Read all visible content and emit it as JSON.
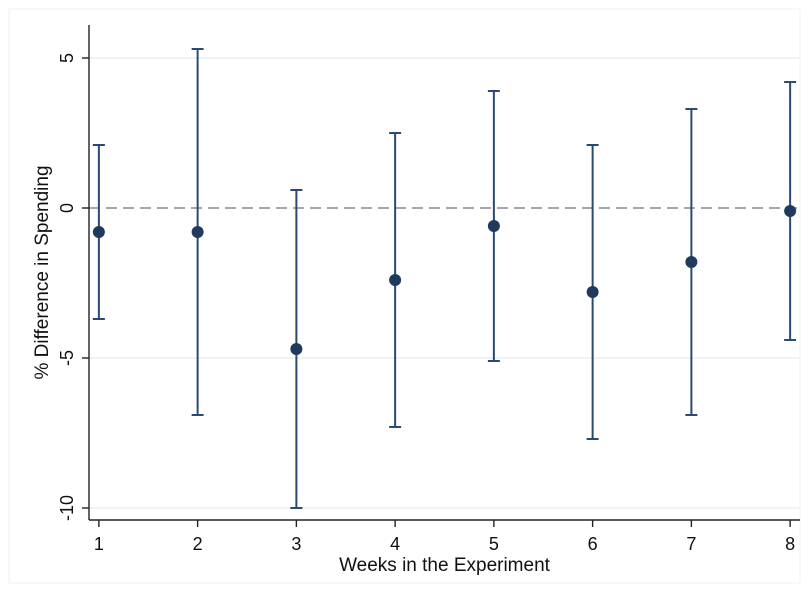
{
  "chart_data": {
    "type": "scatter",
    "title": "",
    "xlabel": "Weeks in the Experiment",
    "ylabel": "% Difference in Spending",
    "x": [
      1,
      2,
      3,
      4,
      5,
      6,
      7,
      8
    ],
    "series": [
      {
        "values": [
          -0.8,
          -0.8,
          -4.7,
          -2.4,
          -0.6,
          -2.8,
          -1.8,
          -0.1
        ],
        "ci_low": [
          -3.7,
          -6.9,
          -10.0,
          -7.3,
          -5.1,
          -7.7,
          -6.9,
          -4.4
        ],
        "ci_high": [
          2.1,
          5.3,
          0.6,
          2.5,
          3.9,
          2.1,
          3.3,
          4.2
        ]
      }
    ],
    "xlim": [
      0.9,
      8.1
    ],
    "ylim": [
      -10.4,
      6.1
    ],
    "x_ticks": [
      "1",
      "2",
      "3",
      "4",
      "5",
      "6",
      "7",
      "8"
    ],
    "y_ticks": [
      "-10",
      "-5",
      "0",
      "5"
    ],
    "y_tick_values": [
      -10,
      -5,
      0,
      5
    ],
    "reference_line": {
      "y": 0,
      "style": "dashed"
    },
    "grid": true,
    "colors": {
      "marker": "#1f3a5c",
      "errorbar": "#2b4a73",
      "reference": "#8a8a8a",
      "grid": "#e8ecef",
      "axis": "#222222"
    }
  }
}
